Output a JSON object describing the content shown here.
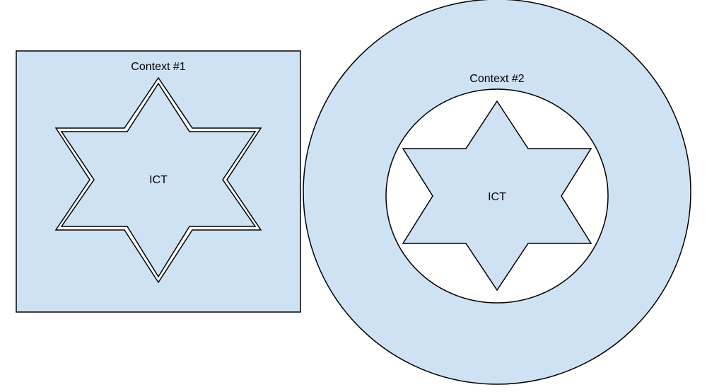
{
  "diagram": {
    "context1": {
      "label": "Context #1",
      "center_label": "ICT"
    },
    "context2": {
      "label": "Context #2",
      "center_label": "ICT"
    }
  },
  "colors": {
    "fill": "#cfe2f3",
    "stroke": "#000000",
    "background": "#ffffff"
  }
}
